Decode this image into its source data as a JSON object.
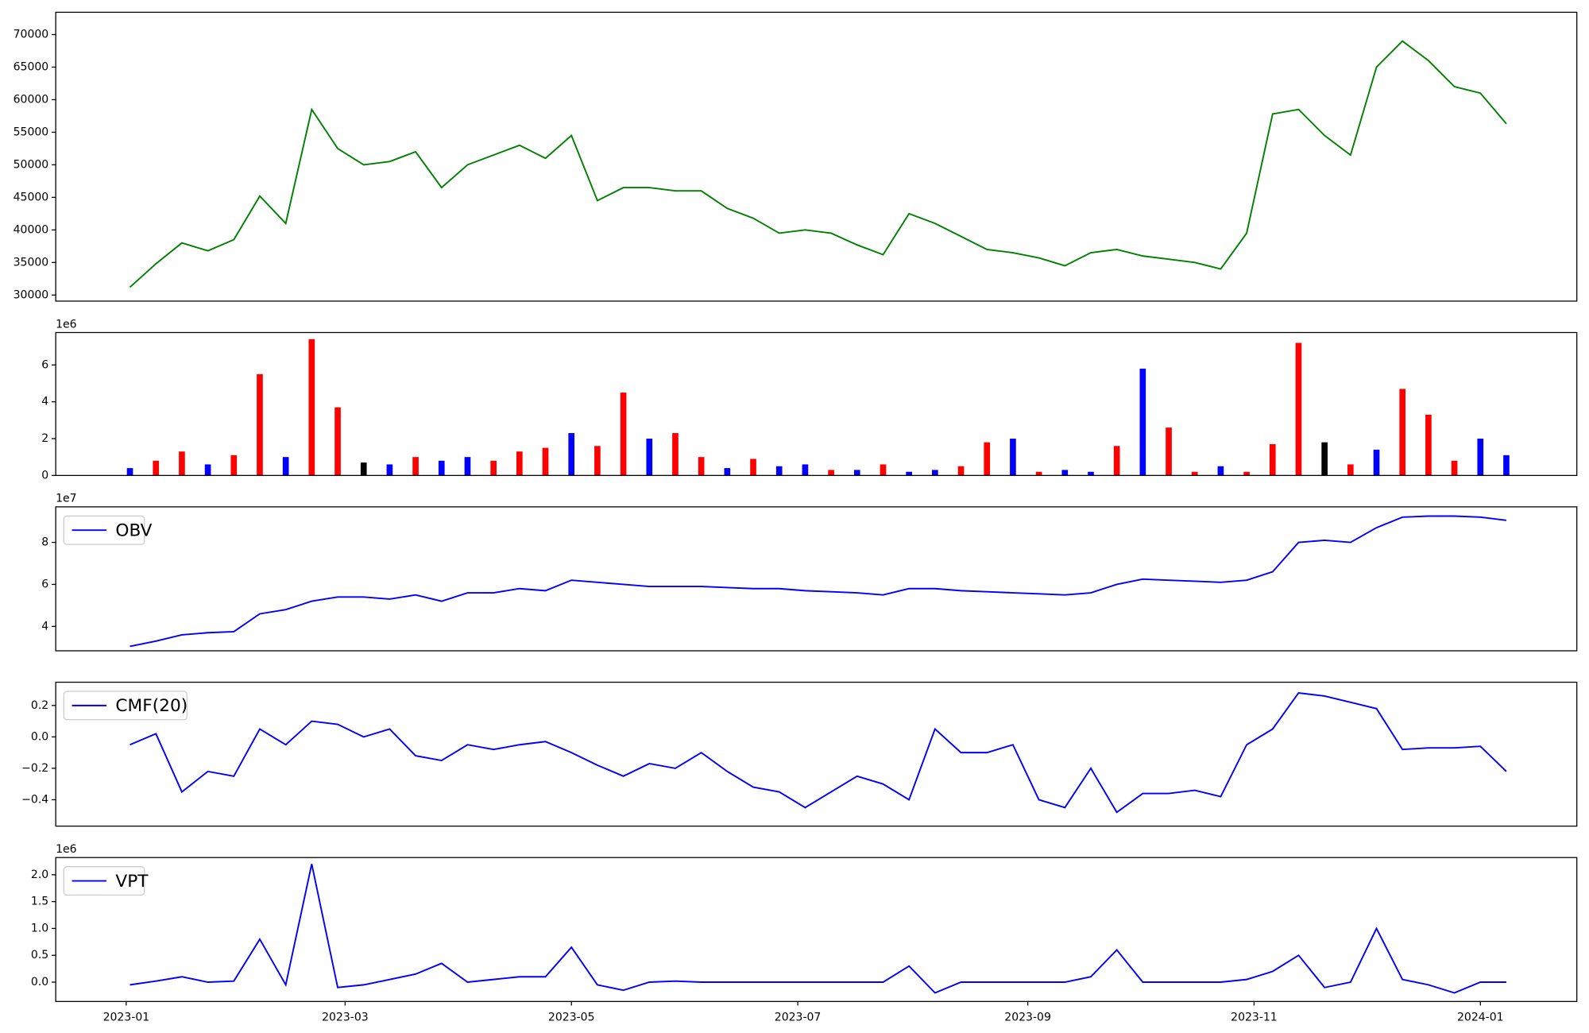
{
  "chart_data": [
    {
      "type": "line",
      "color": "#008000",
      "x": [
        "2023-01-02",
        "2023-01-09",
        "2023-01-16",
        "2023-01-23",
        "2023-01-30",
        "2023-02-06",
        "2023-02-13",
        "2023-02-20",
        "2023-02-27",
        "2023-03-06",
        "2023-03-13",
        "2023-03-20",
        "2023-03-27",
        "2023-04-03",
        "2023-04-10",
        "2023-04-17",
        "2023-04-24",
        "2023-05-01",
        "2023-05-08",
        "2023-05-15",
        "2023-05-22",
        "2023-05-29",
        "2023-06-05",
        "2023-06-12",
        "2023-06-19",
        "2023-06-26",
        "2023-07-03",
        "2023-07-10",
        "2023-07-17",
        "2023-07-24",
        "2023-07-31",
        "2023-08-07",
        "2023-08-14",
        "2023-08-21",
        "2023-08-28",
        "2023-09-04",
        "2023-09-11",
        "2023-09-18",
        "2023-09-25",
        "2023-10-02",
        "2023-10-09",
        "2023-10-16",
        "2023-10-23",
        "2023-10-30",
        "2023-11-06",
        "2023-11-13",
        "2023-11-20",
        "2023-11-27",
        "2023-12-04",
        "2023-12-11",
        "2023-12-18",
        "2023-12-25",
        "2024-01-01",
        "2024-01-08"
      ],
      "values": [
        31200,
        34800,
        38000,
        36800,
        38500,
        45200,
        41000,
        58500,
        52500,
        50000,
        50500,
        52000,
        46500,
        50000,
        51500,
        53000,
        51000,
        54500,
        44500,
        46500,
        46500,
        46000,
        46000,
        43300,
        41800,
        39500,
        40000,
        39500,
        37700,
        36200,
        42500,
        41000,
        39000,
        37000,
        36500,
        35700,
        34500,
        36500,
        37000,
        36000,
        35500,
        35000,
        34000,
        39500,
        57800,
        58500,
        54500,
        51500,
        65000,
        69000,
        66000,
        62000,
        61000,
        56300
      ],
      "xlim": [
        "2022-12-13",
        "2024-01-27"
      ],
      "ylim": [
        29066,
        73424
      ],
      "yticks": [
        30000,
        35000,
        40000,
        45000,
        50000,
        55000,
        60000,
        65000,
        70000
      ]
    },
    {
      "type": "bar",
      "y_offset_label": "1e6",
      "x": [
        "2023-01-02",
        "2023-01-09",
        "2023-01-16",
        "2023-01-23",
        "2023-01-30",
        "2023-02-06",
        "2023-02-13",
        "2023-02-20",
        "2023-02-27",
        "2023-03-06",
        "2023-03-13",
        "2023-03-20",
        "2023-03-27",
        "2023-04-03",
        "2023-04-10",
        "2023-04-17",
        "2023-04-24",
        "2023-05-01",
        "2023-05-08",
        "2023-05-15",
        "2023-05-22",
        "2023-05-29",
        "2023-06-05",
        "2023-06-12",
        "2023-06-19",
        "2023-06-26",
        "2023-07-03",
        "2023-07-10",
        "2023-07-17",
        "2023-07-24",
        "2023-07-31",
        "2023-08-07",
        "2023-08-14",
        "2023-08-21",
        "2023-08-28",
        "2023-09-04",
        "2023-09-11",
        "2023-09-18",
        "2023-09-25",
        "2023-10-02",
        "2023-10-09",
        "2023-10-16",
        "2023-10-23",
        "2023-10-30",
        "2023-11-06",
        "2023-11-13",
        "2023-11-20",
        "2023-11-27",
        "2023-12-04",
        "2023-12-11",
        "2023-12-18",
        "2023-12-25",
        "2024-01-01",
        "2024-01-08"
      ],
      "values": [
        0.4,
        0.8,
        1.3,
        0.6,
        1.1,
        5.5,
        1.0,
        7.4,
        3.7,
        0.7,
        0.6,
        1.0,
        0.8,
        1.0,
        0.8,
        1.3,
        1.5,
        2.3,
        1.6,
        4.5,
        2.0,
        2.3,
        1.0,
        0.4,
        0.9,
        0.5,
        0.6,
        0.3,
        0.3,
        0.6,
        0.2,
        0.3,
        0.5,
        1.8,
        2.0,
        0.2,
        0.3,
        0.2,
        1.6,
        5.8,
        2.6,
        0.2,
        0.5,
        0.2,
        1.7,
        7.2,
        1.8,
        0.6,
        1.4,
        4.7,
        3.3,
        0.8,
        2.0,
        1.1
      ],
      "colors": [
        "blue",
        "red",
        "red",
        "blue",
        "red",
        "red",
        "blue",
        "red",
        "red",
        "black",
        "blue",
        "red",
        "blue",
        "blue",
        "red",
        "red",
        "red",
        "blue",
        "red",
        "red",
        "blue",
        "red",
        "red",
        "blue",
        "red",
        "blue",
        "blue",
        "red",
        "blue",
        "red",
        "blue",
        "blue",
        "red",
        "red",
        "blue",
        "red",
        "blue",
        "blue",
        "red",
        "blue",
        "red",
        "red",
        "blue",
        "red",
        "red",
        "red",
        "black",
        "red",
        "blue",
        "red",
        "red",
        "red",
        "blue",
        "blue"
      ],
      "xlim": [
        "2022-12-13",
        "2024-01-27"
      ],
      "ylim": [
        0,
        7.76
      ],
      "yticks": [
        0,
        2,
        4,
        6
      ]
    },
    {
      "type": "line",
      "y_offset_label": "1e7",
      "x": [
        "2023-01-02",
        "2023-01-09",
        "2023-01-16",
        "2023-01-23",
        "2023-01-30",
        "2023-02-06",
        "2023-02-13",
        "2023-02-20",
        "2023-02-27",
        "2023-03-06",
        "2023-03-13",
        "2023-03-20",
        "2023-03-27",
        "2023-04-03",
        "2023-04-10",
        "2023-04-17",
        "2023-04-24",
        "2023-05-01",
        "2023-05-08",
        "2023-05-15",
        "2023-05-22",
        "2023-05-29",
        "2023-06-05",
        "2023-06-12",
        "2023-06-19",
        "2023-06-26",
        "2023-07-03",
        "2023-07-10",
        "2023-07-17",
        "2023-07-24",
        "2023-07-31",
        "2023-08-07",
        "2023-08-14",
        "2023-08-21",
        "2023-08-28",
        "2023-09-04",
        "2023-09-11",
        "2023-09-18",
        "2023-09-25",
        "2023-10-02",
        "2023-10-09",
        "2023-10-16",
        "2023-10-23",
        "2023-10-30",
        "2023-11-06",
        "2023-11-13",
        "2023-11-20",
        "2023-11-27",
        "2023-12-04",
        "2023-12-11",
        "2023-12-18",
        "2023-12-25",
        "2024-01-01",
        "2024-01-08"
      ],
      "series": [
        {
          "name": "OBV",
          "color": "#0000ff",
          "values": [
            3.05,
            3.3,
            3.6,
            3.7,
            3.75,
            4.6,
            4.8,
            5.2,
            5.4,
            5.4,
            5.3,
            5.5,
            5.2,
            5.6,
            5.6,
            5.8,
            5.7,
            6.2,
            6.1,
            6.0,
            5.9,
            5.9,
            5.9,
            5.85,
            5.8,
            5.8,
            5.7,
            5.65,
            5.6,
            5.5,
            5.8,
            5.8,
            5.7,
            5.65,
            5.6,
            5.55,
            5.5,
            5.6,
            6.0,
            6.25,
            6.2,
            6.15,
            6.1,
            6.2,
            6.6,
            8.0,
            8.1,
            8.0,
            8.7,
            9.2,
            9.25,
            9.25,
            9.2,
            9.05
          ]
        }
      ],
      "xlim": [
        "2022-12-13",
        "2024-01-27"
      ],
      "ylim": [
        2.84,
        9.69
      ],
      "yticks": [
        4,
        6,
        8
      ]
    },
    {
      "type": "line",
      "x": [
        "2023-01-02",
        "2023-01-09",
        "2023-01-16",
        "2023-01-23",
        "2023-01-30",
        "2023-02-06",
        "2023-02-13",
        "2023-02-20",
        "2023-02-27",
        "2023-03-06",
        "2023-03-13",
        "2023-03-20",
        "2023-03-27",
        "2023-04-03",
        "2023-04-10",
        "2023-04-17",
        "2023-04-24",
        "2023-05-01",
        "2023-05-08",
        "2023-05-15",
        "2023-05-22",
        "2023-05-29",
        "2023-06-05",
        "2023-06-12",
        "2023-06-19",
        "2023-06-26",
        "2023-07-03",
        "2023-07-10",
        "2023-07-17",
        "2023-07-24",
        "2023-07-31",
        "2023-08-07",
        "2023-08-14",
        "2023-08-21",
        "2023-08-28",
        "2023-09-04",
        "2023-09-11",
        "2023-09-18",
        "2023-09-25",
        "2023-10-02",
        "2023-10-09",
        "2023-10-16",
        "2023-10-23",
        "2023-10-30",
        "2023-11-06",
        "2023-11-13",
        "2023-11-20",
        "2023-11-27",
        "2023-12-04",
        "2023-12-11",
        "2023-12-18",
        "2023-12-25",
        "2024-01-01",
        "2024-01-08"
      ],
      "series": [
        {
          "name": "CMF(20)",
          "color": "#0000ff",
          "values": [
            -0.05,
            0.02,
            -0.35,
            -0.22,
            -0.25,
            0.05,
            -0.05,
            0.1,
            0.08,
            0.0,
            0.05,
            -0.12,
            -0.15,
            -0.05,
            -0.08,
            -0.05,
            -0.03,
            -0.1,
            -0.18,
            -0.25,
            -0.17,
            -0.2,
            -0.1,
            -0.22,
            -0.32,
            -0.35,
            -0.45,
            -0.35,
            -0.25,
            -0.3,
            -0.4,
            0.05,
            -0.1,
            -0.1,
            -0.05,
            -0.4,
            -0.45,
            -0.2,
            -0.48,
            -0.36,
            -0.36,
            -0.34,
            -0.38,
            -0.05,
            0.05,
            0.28,
            0.26,
            0.22,
            0.18,
            -0.08,
            -0.07,
            -0.07,
            -0.06,
            -0.22
          ]
        }
      ],
      "xlim": [
        "2022-12-13",
        "2024-01-27"
      ],
      "ylim": [
        -0.568,
        0.348
      ],
      "yticks": [
        {
          "value": -0.4,
          "label": "−0.4"
        },
        {
          "value": -0.2,
          "label": "−0.2"
        },
        {
          "value": 0,
          "label": "0.0"
        },
        {
          "value": 0.2,
          "label": "0.2"
        }
      ]
    },
    {
      "type": "line",
      "y_offset_label": "1e6",
      "x": [
        "2023-01-02",
        "2023-01-09",
        "2023-01-16",
        "2023-01-23",
        "2023-01-30",
        "2023-02-06",
        "2023-02-13",
        "2023-02-20",
        "2023-02-27",
        "2023-03-06",
        "2023-03-13",
        "2023-03-20",
        "2023-03-27",
        "2023-04-03",
        "2023-04-10",
        "2023-04-17",
        "2023-04-24",
        "2023-05-01",
        "2023-05-08",
        "2023-05-15",
        "2023-05-22",
        "2023-05-29",
        "2023-06-05",
        "2023-06-12",
        "2023-06-19",
        "2023-06-26",
        "2023-07-03",
        "2023-07-10",
        "2023-07-17",
        "2023-07-24",
        "2023-07-31",
        "2023-08-07",
        "2023-08-14",
        "2023-08-21",
        "2023-08-28",
        "2023-09-04",
        "2023-09-11",
        "2023-09-18",
        "2023-09-25",
        "2023-10-02",
        "2023-10-09",
        "2023-10-16",
        "2023-10-23",
        "2023-10-30",
        "2023-11-06",
        "2023-11-13",
        "2023-11-20",
        "2023-11-27",
        "2023-12-04",
        "2023-12-11",
        "2023-12-18",
        "2023-12-25",
        "2024-01-01",
        "2024-01-08"
      ],
      "series": [
        {
          "name": "VPT",
          "color": "#0000ff",
          "values": [
            -0.05,
            0.02,
            0.1,
            0.0,
            0.02,
            0.8,
            -0.05,
            2.2,
            -0.1,
            -0.05,
            0.05,
            0.15,
            0.35,
            0.0,
            0.05,
            0.1,
            0.1,
            0.65,
            -0.05,
            -0.15,
            0.0,
            0.02,
            0.0,
            0.0,
            0.0,
            0.0,
            0.0,
            0.0,
            0.0,
            0.0,
            0.3,
            -0.2,
            0.0,
            0.0,
            0.0,
            0.0,
            0.0,
            0.1,
            0.6,
            0.0,
            0.0,
            0.0,
            0.0,
            0.05,
            0.2,
            0.5,
            -0.1,
            0.0,
            1.0,
            0.05,
            -0.05,
            -0.2,
            0.0,
            0.0
          ]
        }
      ],
      "xlim": [
        "2022-12-13",
        "2024-01-27"
      ],
      "ylim": [
        -0.36,
        2.32
      ],
      "yticks": [
        {
          "value": 0,
          "label": "0.0"
        },
        {
          "value": 0.5,
          "label": "0.5"
        },
        {
          "value": 1,
          "label": "1.0"
        },
        {
          "value": 1.5,
          "label": "1.5"
        },
        {
          "value": 2,
          "label": "2.0"
        }
      ],
      "xticks": [
        {
          "value": "2023-01-01",
          "label": "2023-01"
        },
        {
          "value": "2023-03-01",
          "label": "2023-03"
        },
        {
          "value": "2023-05-01",
          "label": "2023-05"
        },
        {
          "value": "2023-07-01",
          "label": "2023-07"
        },
        {
          "value": "2023-09-01",
          "label": "2023-09"
        },
        {
          "value": "2023-11-01",
          "label": "2023-11"
        },
        {
          "value": "2024-01-01",
          "label": "2024-01"
        }
      ]
    }
  ]
}
